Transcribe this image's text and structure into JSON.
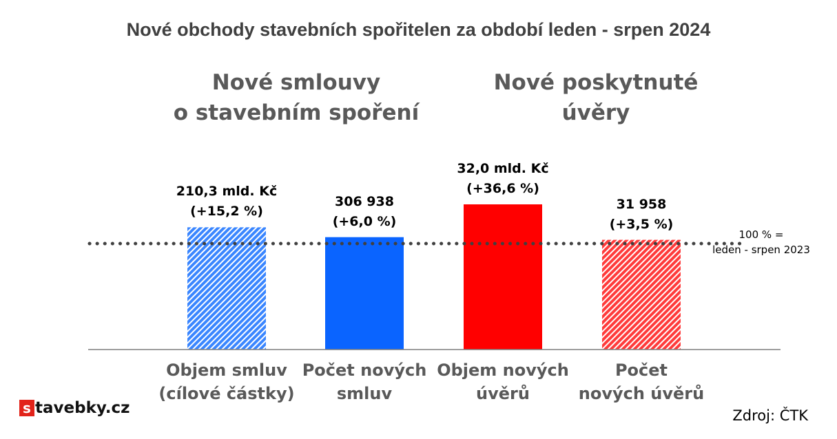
{
  "chart_data": {
    "type": "bar",
    "title": "Nové obchody stavebních spořitelen za období leden - srpen 2024",
    "groups": [
      {
        "title_lines": [
          "Nové smlouvy",
          "o stavebním spoření"
        ]
      },
      {
        "title_lines": [
          "Nové poskytnuté",
          "úvěry"
        ]
      }
    ],
    "categories": [
      {
        "lines": [
          "Objem smluv",
          "(cílové částky)"
        ]
      },
      {
        "lines": [
          "Počet  nových",
          "smluv"
        ]
      },
      {
        "lines": [
          "Objem nových",
          "úvěrů"
        ]
      },
      {
        "lines": [
          "Počet",
          "nových úvěrů"
        ]
      }
    ],
    "values": [
      115.2,
      106.0,
      136.6,
      103.5
    ],
    "value_unit": "% of leden - srpen 2023",
    "data_labels": [
      [
        "210,3 mld. Kč",
        "(+15,2 %)"
      ],
      [
        "306 938",
        "(+6,0 %)"
      ],
      [
        "32,0 mld. Kč",
        "(+36,6 %)"
      ],
      [
        "31 958",
        "(+3,5 %)"
      ]
    ],
    "bar_colors": [
      "#3a86ff",
      "#0a64ff",
      "#ff0000",
      "#ff3b3b"
    ],
    "bar_patterns": [
      "hatched",
      "solid",
      "solid",
      "hatched"
    ],
    "reference_line": {
      "value": 100,
      "style": "dotted",
      "color": "#404040",
      "label_lines": [
        "100 % =",
        "leden - srpen 2023"
      ]
    },
    "grid": false,
    "legend": "none"
  },
  "branding": {
    "logo_letter": "s",
    "logo_text": "tavebky.cz"
  },
  "source": "Zdroj: ČTK"
}
